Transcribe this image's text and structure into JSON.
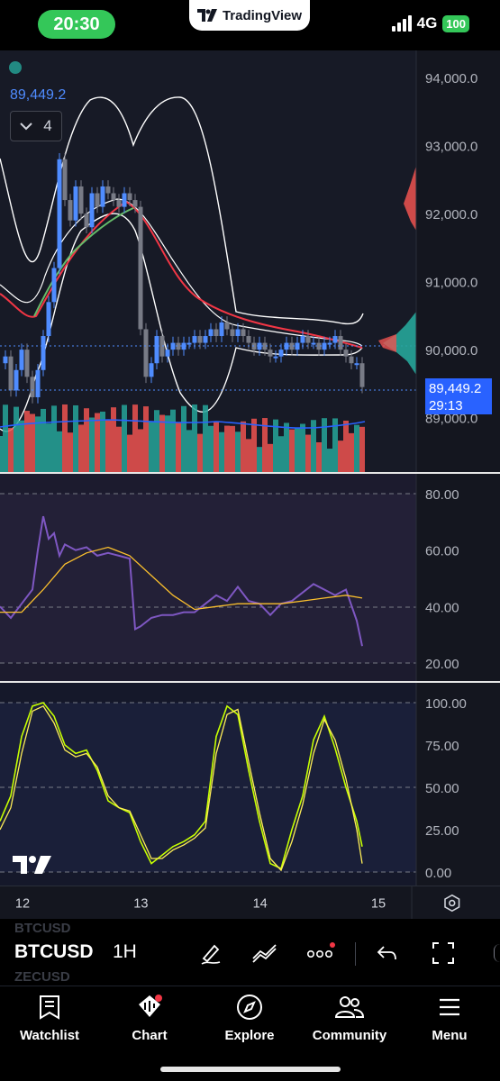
{
  "status_bar": {
    "time": "20:30",
    "app_name": "TradingView",
    "network": "4G",
    "battery": "100"
  },
  "chart": {
    "symbol": "BTCUSD",
    "interval": "1H",
    "ghost_symbols": [
      "BTCUSD",
      "ZECUSD"
    ],
    "current_price_label": "89,449.2",
    "indicators_collapse_count": "4",
    "last_price_tag": {
      "price": "89,449.2",
      "countdown": "29:13"
    },
    "price_axis_ticks": [
      "94,000.0",
      "93,000.0",
      "92,000.0",
      "91,000.0",
      "90,000.0",
      "89,000.0"
    ],
    "rsi_axis_ticks": [
      "80.00",
      "60.00",
      "40.00",
      "20.00"
    ],
    "stoch_axis_ticks": [
      "100.00",
      "75.00",
      "50.00",
      "25.00",
      "0.00"
    ],
    "time_axis_labels": [
      "12",
      "13",
      "14",
      "15"
    ],
    "colors": {
      "up": "#4f8cff",
      "down": "#787b86",
      "vol_up": "#26a69a",
      "vol_down": "#ef5350",
      "ema_fast": "#4caf50",
      "ema_slow": "#f23645",
      "bollinger": "#ffffff",
      "rsi": "#7e57c2",
      "rsi_signal": "#fbc02d",
      "stoch_k": "#c6ff00",
      "stoch_d": "#ffee58"
    }
  },
  "chart_data": [
    {
      "type": "line",
      "title": "",
      "x_labels": [
        "12",
        "13",
        "14",
        "15"
      ],
      "ylim": [
        88200,
        94400
      ],
      "series": [
        {
          "x": [
            0,
            6,
            12,
            18,
            24,
            30,
            36,
            42,
            48,
            54,
            60,
            66,
            72,
            78,
            84,
            90,
            96,
            102,
            108,
            114,
            120,
            126,
            132,
            138,
            144,
            150,
            156,
            162,
            168,
            174,
            180,
            186,
            192,
            198,
            204,
            210,
            216,
            222,
            228,
            234,
            240,
            246,
            252,
            258,
            264,
            270,
            276,
            282,
            288,
            294,
            300,
            306,
            312,
            318,
            324,
            330,
            336,
            342,
            348,
            354,
            360,
            366,
            372,
            378,
            384,
            390,
            396,
            402
          ],
          "y": [
            89800,
            89900,
            89400,
            89700,
            90000,
            89600,
            89300,
            89700,
            90200,
            90700,
            91200,
            92800,
            92200,
            91900,
            92400,
            92000,
            91800,
            92300,
            92100,
            92400,
            92300,
            92200,
            92100,
            92300,
            92200,
            92100,
            90300,
            89600,
            89800,
            90200,
            89900,
            90000,
            90100,
            90000,
            90100,
            90100,
            90200,
            90100,
            90200,
            90300,
            90200,
            90400,
            90300,
            90200,
            90300,
            90200,
            90100,
            90000,
            90100,
            90000,
            89900,
            89900,
            90000,
            90100,
            90000,
            90100,
            90200,
            90100,
            90100,
            90000,
            90100,
            90100,
            90200,
            90000,
            89900,
            89800,
            89800,
            89450
          ]
        }
      ]
    },
    {
      "type": "line",
      "title": "",
      "ylim": [
        15,
        85
      ],
      "series": [
        {
          "x": [
            0,
            12,
            24,
            36,
            42,
            48,
            54,
            60,
            66,
            72,
            84,
            96,
            108,
            120,
            132,
            144,
            150,
            156,
            168,
            180,
            192,
            204,
            216,
            228,
            240,
            252,
            264,
            276,
            288,
            300,
            312,
            324,
            336,
            348,
            360,
            372,
            384,
            396,
            402
          ],
          "y": [
            40,
            36,
            41,
            46,
            60,
            72,
            64,
            66,
            58,
            62,
            60,
            61,
            58,
            59,
            58,
            57,
            32,
            33,
            36,
            37,
            37,
            38,
            38,
            41,
            44,
            42,
            47,
            42,
            41,
            37,
            41,
            42,
            45,
            48,
            46,
            44,
            46,
            35,
            26
          ]
        },
        {
          "x": [
            0,
            24,
            48,
            72,
            96,
            120,
            144,
            168,
            192,
            216,
            240,
            264,
            288,
            312,
            336,
            360,
            384,
            402
          ],
          "y": [
            38,
            38,
            46,
            55,
            59,
            61,
            58,
            51,
            44,
            39,
            40,
            41,
            41,
            41,
            42,
            43,
            44,
            43
          ]
        }
      ]
    },
    {
      "type": "line",
      "title": "",
      "ylim": [
        -5,
        105
      ],
      "series": [
        {
          "x": [
            0,
            12,
            24,
            36,
            48,
            60,
            72,
            84,
            96,
            108,
            120,
            132,
            144,
            156,
            168,
            180,
            192,
            204,
            216,
            228,
            240,
            252,
            264,
            276,
            288,
            300,
            312,
            324,
            336,
            348,
            360,
            372,
            384,
            396,
            402
          ],
          "y": [
            30,
            45,
            80,
            98,
            100,
            92,
            75,
            70,
            72,
            60,
            42,
            38,
            35,
            18,
            5,
            10,
            15,
            18,
            22,
            30,
            80,
            98,
            93,
            60,
            30,
            5,
            2,
            25,
            45,
            78,
            92,
            73,
            50,
            30,
            15
          ]
        },
        {
          "x": [
            0,
            12,
            24,
            36,
            48,
            60,
            72,
            84,
            96,
            108,
            120,
            132,
            144,
            156,
            168,
            180,
            192,
            204,
            216,
            228,
            240,
            252,
            264,
            276,
            288,
            300,
            312,
            324,
            336,
            348,
            360,
            372,
            384,
            396,
            402
          ],
          "y": [
            25,
            38,
            70,
            95,
            98,
            88,
            72,
            68,
            70,
            62,
            45,
            38,
            36,
            22,
            8,
            8,
            13,
            16,
            20,
            26,
            70,
            93,
            96,
            65,
            35,
            8,
            1,
            18,
            40,
            70,
            90,
            78,
            55,
            25,
            5
          ]
        }
      ]
    }
  ],
  "toolbar": {
    "tools": [
      "pen-icon",
      "trend-lines-icon",
      "more-icon",
      "undo-icon",
      "fullscreen-icon"
    ]
  },
  "tabs": [
    {
      "label": "Watchlist",
      "icon": "watchlist-icon"
    },
    {
      "label": "Chart",
      "icon": "chart-icon"
    },
    {
      "label": "Explore",
      "icon": "compass-icon"
    },
    {
      "label": "Community",
      "icon": "community-icon"
    },
    {
      "label": "Menu",
      "icon": "menu-icon"
    }
  ]
}
